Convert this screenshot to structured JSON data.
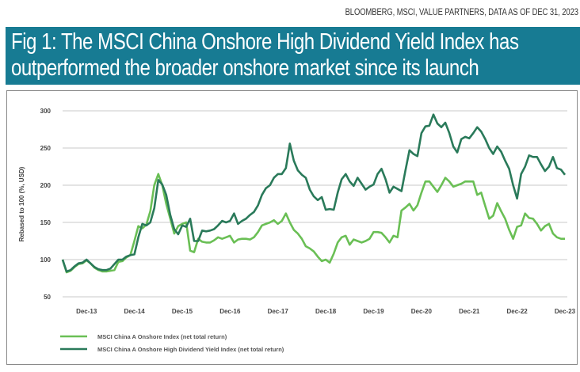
{
  "source": "BLOOMBERG, MSCI, VALUE PARTNERS, DATA AS OF DEC 31, 2023",
  "title_lines": [
    "Fig 1: The MSCI China Onshore High Dividend Yield Index has",
    "outperformed the broader onshore market since its launch"
  ],
  "chart_data": {
    "type": "line",
    "title": "Fig 1: The MSCI China Onshore High Dividend Yield Index has outperformed the broader onshore market since its launch",
    "xlabel": "",
    "ylabel": "Rebased to 100 (%, USD)",
    "ylim": [
      50,
      300
    ],
    "yticks": [
      50,
      100,
      150,
      200,
      250,
      300
    ],
    "xtick_labels": [
      "Dec-13",
      "Dec-14",
      "Dec-15",
      "Dec-16",
      "Dec-17",
      "Dec-18",
      "Dec-19",
      "Dec-20",
      "Dec-21",
      "Dec-22",
      "Dec-23"
    ],
    "xtick_dates": [
      "2013-12",
      "2014-12",
      "2015-12",
      "2016-12",
      "2017-12",
      "2018-12",
      "2019-12",
      "2020-12",
      "2021-12",
      "2022-12",
      "2023-12"
    ],
    "grid": "horizontal",
    "legend_position": "bottom-left",
    "x": [
      "2013-06",
      "2013-07",
      "2013-08",
      "2013-09",
      "2013-10",
      "2013-11",
      "2013-12",
      "2014-01",
      "2014-02",
      "2014-03",
      "2014-04",
      "2014-05",
      "2014-06",
      "2014-07",
      "2014-08",
      "2014-09",
      "2014-10",
      "2014-11",
      "2014-12",
      "2015-01",
      "2015-02",
      "2015-03",
      "2015-04",
      "2015-05",
      "2015-06",
      "2015-07",
      "2015-08",
      "2015-09",
      "2015-10",
      "2015-11",
      "2015-12",
      "2016-01",
      "2016-02",
      "2016-03",
      "2016-04",
      "2016-05",
      "2016-06",
      "2016-07",
      "2016-08",
      "2016-09",
      "2016-10",
      "2016-11",
      "2016-12",
      "2017-01",
      "2017-02",
      "2017-03",
      "2017-04",
      "2017-05",
      "2017-06",
      "2017-07",
      "2017-08",
      "2017-09",
      "2017-10",
      "2017-11",
      "2017-12",
      "2018-01",
      "2018-02",
      "2018-03",
      "2018-04",
      "2018-05",
      "2018-06",
      "2018-07",
      "2018-08",
      "2018-09",
      "2018-10",
      "2018-11",
      "2018-12",
      "2019-01",
      "2019-02",
      "2019-03",
      "2019-04",
      "2019-05",
      "2019-06",
      "2019-07",
      "2019-08",
      "2019-09",
      "2019-10",
      "2019-11",
      "2019-12",
      "2020-01",
      "2020-02",
      "2020-03",
      "2020-04",
      "2020-05",
      "2020-06",
      "2020-07",
      "2020-08",
      "2020-09",
      "2020-10",
      "2020-11",
      "2020-12",
      "2021-01",
      "2021-02",
      "2021-03",
      "2021-04",
      "2021-05",
      "2021-06",
      "2021-07",
      "2021-08",
      "2021-09",
      "2021-10",
      "2021-11",
      "2021-12",
      "2022-01",
      "2022-02",
      "2022-03",
      "2022-04",
      "2022-05",
      "2022-06",
      "2022-07",
      "2022-08",
      "2022-09",
      "2022-10",
      "2022-11",
      "2022-12",
      "2023-01",
      "2023-02",
      "2023-03",
      "2023-04",
      "2023-05",
      "2023-06",
      "2023-07",
      "2023-08",
      "2023-09",
      "2023-10",
      "2023-11",
      "2023-12"
    ],
    "series": [
      {
        "name": "MSCI China A Onshore Index (net total return)",
        "color": "#6abf55",
        "values": [
          100,
          83,
          85,
          90,
          94,
          95,
          99,
          95,
          89,
          86,
          84,
          84,
          85,
          86,
          97,
          98,
          103,
          106,
          125,
          145,
          142,
          147,
          165,
          200,
          215,
          200,
          175,
          155,
          135,
          145,
          148,
          150,
          112,
          110,
          128,
          124,
          123,
          123,
          126,
          130,
          128,
          130,
          132,
          123,
          127,
          128,
          128,
          127,
          130,
          137,
          146,
          148,
          150,
          153,
          148,
          152,
          162,
          150,
          140,
          135,
          128,
          118,
          115,
          111,
          104,
          98,
          100,
          96,
          108,
          123,
          130,
          132,
          120,
          127,
          125,
          123,
          125,
          128,
          137,
          137,
          136,
          130,
          123,
          132,
          130,
          166,
          170,
          175,
          166,
          173,
          190,
          205,
          205,
          198,
          191,
          200,
          210,
          205,
          198,
          200,
          202,
          205,
          205,
          205,
          187,
          190,
          172,
          155,
          159,
          176,
          165,
          155,
          140,
          128,
          144,
          146,
          162,
          156,
          155,
          148,
          139,
          145,
          148,
          135,
          130,
          128,
          128
        ]
      },
      {
        "name": "MSCI China A Onshore High Dividend Yield Index (net total return)",
        "color": "#2a7a5a",
        "values": [
          100,
          84,
          86,
          91,
          95,
          96,
          100,
          95,
          90,
          87,
          86,
          86,
          88,
          94,
          100,
          100,
          104,
          106,
          107,
          130,
          148,
          146,
          150,
          169,
          207,
          201,
          187,
          160,
          141,
          134,
          146,
          144,
          155,
          125,
          125,
          139,
          138,
          139,
          141,
          146,
          152,
          150,
          152,
          162,
          148,
          152,
          155,
          160,
          164,
          173,
          187,
          196,
          200,
          210,
          215,
          215,
          223,
          256,
          233,
          220,
          214,
          210,
          194,
          185,
          180,
          184,
          167,
          168,
          167,
          190,
          208,
          215,
          205,
          199,
          210,
          202,
          194,
          198,
          201,
          215,
          222,
          208,
          190,
          198,
          195,
          192,
          220,
          247,
          242,
          239,
          270,
          279,
          280,
          295,
          283,
          278,
          284,
          270,
          252,
          244,
          262,
          265,
          263,
          270,
          278,
          272,
          262,
          250,
          242,
          252,
          245,
          233,
          222,
          200,
          182,
          215,
          225,
          240,
          238,
          238,
          228,
          219,
          225,
          238,
          223,
          221,
          214
        ]
      }
    ]
  }
}
